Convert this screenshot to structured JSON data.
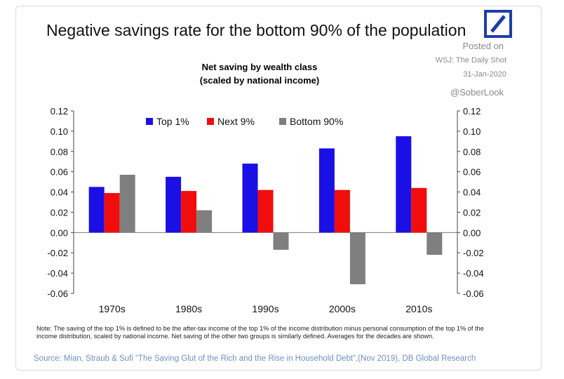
{
  "header": {
    "title": "Negative savings rate for the bottom 90% of the population",
    "posted_on": "Posted on",
    "posted_source": "WSJ: The Daily Shot",
    "posted_date": "31-Jan-2020",
    "handle": "@SoberLook"
  },
  "logo": {
    "name": "deutsche-bank-logo",
    "color": "#1d3fa6"
  },
  "chart_data": {
    "type": "bar",
    "title": "Net saving by wealth class",
    "subtitle": "(scaled by national income)",
    "categories": [
      "1970s",
      "1980s",
      "1990s",
      "2000s",
      "2010s"
    ],
    "series": [
      {
        "name": "Top 1%",
        "color": "#1a10e6",
        "values": [
          0.045,
          0.055,
          0.068,
          0.083,
          0.095
        ]
      },
      {
        "name": "Next 9%",
        "color": "#f20d0d",
        "values": [
          0.039,
          0.041,
          0.042,
          0.042,
          0.044
        ]
      },
      {
        "name": "Bottom 90%",
        "color": "#7f7f7f",
        "values": [
          0.057,
          0.022,
          -0.017,
          -0.051,
          -0.022
        ]
      }
    ],
    "ylim": [
      -0.06,
      0.12
    ],
    "yticks": [
      "0.12",
      "0.10",
      "0.08",
      "0.06",
      "0.04",
      "0.02",
      "0.00",
      "-0.02",
      "-0.04",
      "-0.06"
    ],
    "legend_position": "top",
    "grid": false,
    "dual_axis_labels": true
  },
  "footer": {
    "note": "Note: The saving of the top 1% is defined to be the after-tax income of the top 1% of the income distribution minus personal consumption of the top 1% of the income distribution, scaled by national income. Net saving of the other two groups is similarly defined. Averages for the decades are shown.",
    "source": "Source: Mian, Straub & Sufi “The Saving Glut of the Rich and the Rise in Household Debt”,(Nov 2019), DB Global Research"
  }
}
